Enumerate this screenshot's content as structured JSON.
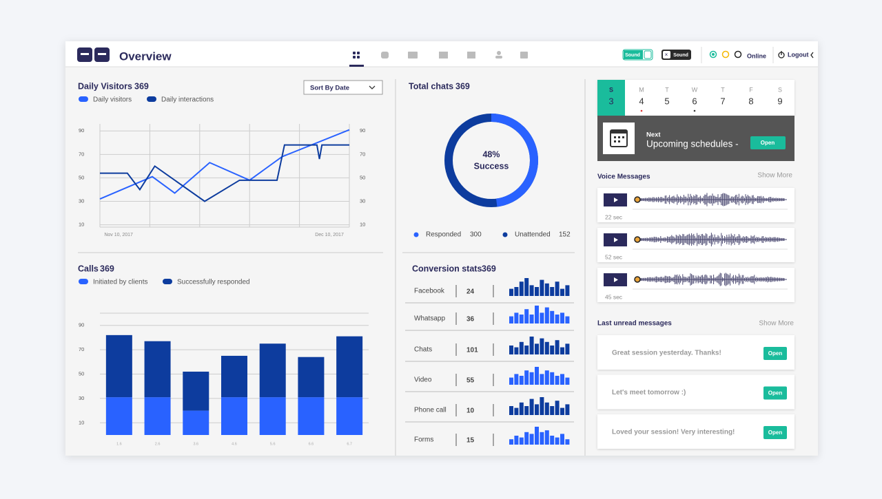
{
  "header": {
    "title": "Overview",
    "toggles": [
      "Sound",
      "Sound"
    ],
    "status": "Online",
    "logout": "Logout"
  },
  "visitors_chart": {
    "type": "line",
    "title": "Daily Visitors",
    "total": 369,
    "sort_label": "Sort By Date",
    "xlim": [
      0,
      100
    ],
    "xticks": [
      {
        "value": 7.5,
        "label": "Nov 10, 2017"
      },
      {
        "value": 92,
        "label": "Dec 10, 2017"
      }
    ],
    "ylim": [
      8,
      96
    ],
    "yticks": [
      10,
      30,
      50,
      70,
      90
    ],
    "grid": true,
    "series": [
      {
        "name": "Daily visitors",
        "color": "#2962ff",
        "x": [
          0,
          21,
          30,
          44,
          60,
          73,
          100
        ],
        "values": [
          32,
          51,
          37,
          63,
          48,
          68,
          91
        ]
      },
      {
        "name": "Daily interactions",
        "color": "#0d3c9e",
        "x": [
          0,
          11,
          16,
          22,
          42,
          56,
          71,
          74,
          87,
          88,
          89,
          100
        ],
        "values": [
          54,
          54,
          40,
          60,
          30,
          48,
          48,
          78,
          78,
          66,
          78,
          78
        ]
      }
    ]
  },
  "calls_chart": {
    "type": "bar",
    "title": "Calls",
    "total": 369,
    "categories": [
      "1.6",
      "2.6",
      "3.6",
      "4.6",
      "5.6",
      "6.6",
      "6.7"
    ],
    "ylim": [
      0,
      100
    ],
    "yticks": [
      10,
      30,
      50,
      70,
      90
    ],
    "stacked": true,
    "series": [
      {
        "name": "Initiated by clients",
        "color": "#2962ff",
        "values": [
          31,
          31,
          20,
          31,
          31,
          31,
          31
        ]
      },
      {
        "name": "Successfully responded",
        "color": "#0d3c9e",
        "values": [
          51,
          46,
          32,
          34,
          44,
          33,
          50
        ]
      }
    ]
  },
  "chats_chart": {
    "type": "donut",
    "title": "Total chats",
    "total": 369,
    "values": [
      48
    ],
    "value_labels": [
      "48%"
    ],
    "label": "Success",
    "color": "#2962ff",
    "rest_color": "#0d3c9e",
    "legend": [
      {
        "name": "Responded",
        "value": 300,
        "color": "#2962ff"
      },
      {
        "name": "Unattended",
        "value": 152,
        "color": "#0d3c9e"
      }
    ]
  },
  "conversion": {
    "title": "Conversion stats",
    "total": 369,
    "rows": [
      {
        "name": "Facebook",
        "count": 24,
        "color": "#0d3c9e",
        "bars": [
          4,
          5,
          8,
          10,
          6,
          5,
          9,
          7,
          5,
          8,
          4,
          6
        ]
      },
      {
        "name": "Whatsapp",
        "count": 36,
        "color": "#2962ff",
        "bars": [
          4,
          6,
          5,
          8,
          5,
          10,
          6,
          9,
          7,
          5,
          6,
          4
        ]
      },
      {
        "name": "Chats",
        "count": 101,
        "color": "#0d3c9e",
        "bars": [
          5,
          4,
          7,
          5,
          10,
          6,
          9,
          7,
          5,
          8,
          4,
          6
        ]
      },
      {
        "name": "Video",
        "count": 55,
        "color": "#2962ff",
        "bars": [
          4,
          6,
          5,
          8,
          7,
          10,
          6,
          8,
          7,
          5,
          6,
          4
        ]
      },
      {
        "name": "Phone call",
        "count": 10,
        "color": "#0d3c9e",
        "bars": [
          5,
          4,
          7,
          5,
          9,
          6,
          10,
          7,
          5,
          8,
          4,
          6
        ]
      },
      {
        "name": "Forms",
        "count": 15,
        "color": "#2962ff",
        "bars": [
          3,
          5,
          4,
          7,
          6,
          10,
          7,
          8,
          5,
          4,
          6,
          3
        ]
      }
    ]
  },
  "calendar": {
    "days": [
      {
        "letter": "S",
        "date": 3
      },
      {
        "letter": "M",
        "date": 4
      },
      {
        "letter": "T",
        "date": 5
      },
      {
        "letter": "W",
        "date": 6
      },
      {
        "letter": "T",
        "date": 7
      },
      {
        "letter": "F",
        "date": 8
      },
      {
        "letter": "S",
        "date": 9
      }
    ],
    "next_label": "Next",
    "next_text": "Upcoming schedules -",
    "button": "Open"
  },
  "voice": {
    "title": "Voice Messages",
    "more": "Show More",
    "messages": [
      {
        "duration": "22 sec"
      },
      {
        "duration": "52 sec"
      },
      {
        "duration": "45 sec"
      }
    ]
  },
  "unread": {
    "title": "Last unread messages",
    "more": "Show More",
    "button": "Open",
    "messages": [
      "Great session yesterday. Thanks!",
      "Let's meet tomorrow :)",
      "Loved your session! Very interesting!"
    ]
  }
}
